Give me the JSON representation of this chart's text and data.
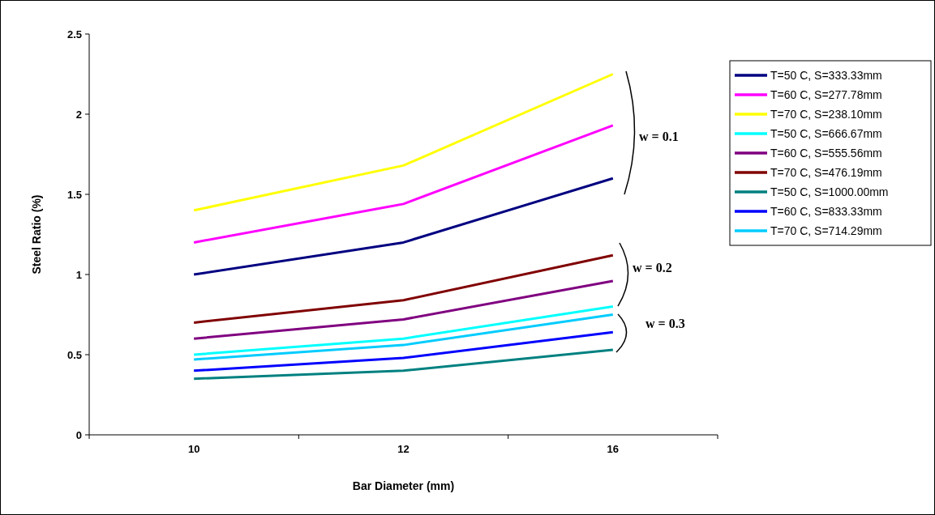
{
  "chart_data": {
    "type": "line",
    "xlabel": "Bar Diameter (mm)",
    "ylabel": "Steel Ratio (%)",
    "categories": [
      "10",
      "12",
      "16"
    ],
    "ylim": [
      0,
      2.5
    ],
    "yticks": [
      0,
      0.5,
      1,
      1.5,
      2,
      2.5
    ],
    "grid": false,
    "legend": "right",
    "marker": "none",
    "line_style": "solid",
    "series": [
      {
        "name": "T=50 C, S=333.33mm",
        "color": "#000080",
        "values": [
          1.0,
          1.2,
          1.6
        ]
      },
      {
        "name": "T=60 C, S=277.78mm",
        "color": "#ff00ff",
        "values": [
          1.2,
          1.44,
          1.93
        ]
      },
      {
        "name": "T=70 C, S=238.10mm",
        "color": "#ffff00",
        "values": [
          1.4,
          1.68,
          2.25
        ]
      },
      {
        "name": "T=50 C, S=666.67mm",
        "color": "#00ffff",
        "values": [
          0.5,
          0.6,
          0.8
        ]
      },
      {
        "name": "T=60 C, S=555.56mm",
        "color": "#800080",
        "values": [
          0.6,
          0.72,
          0.96
        ]
      },
      {
        "name": "T=70 C, S=476.19mm",
        "color": "#800000",
        "values": [
          0.7,
          0.84,
          1.12
        ]
      },
      {
        "name": "T=50 C, S=1000.00mm",
        "color": "#008080",
        "values": [
          0.35,
          0.4,
          0.53
        ]
      },
      {
        "name": "T=60 C, S=833.33mm",
        "color": "#0000ff",
        "values": [
          0.4,
          0.48,
          0.64
        ]
      },
      {
        "name": "T=70 C, S=714.29mm",
        "color": "#00ccff",
        "values": [
          0.47,
          0.56,
          0.75
        ]
      }
    ],
    "annotations": [
      "w = 0.1",
      "w = 0.2",
      "w = 0.3"
    ]
  }
}
